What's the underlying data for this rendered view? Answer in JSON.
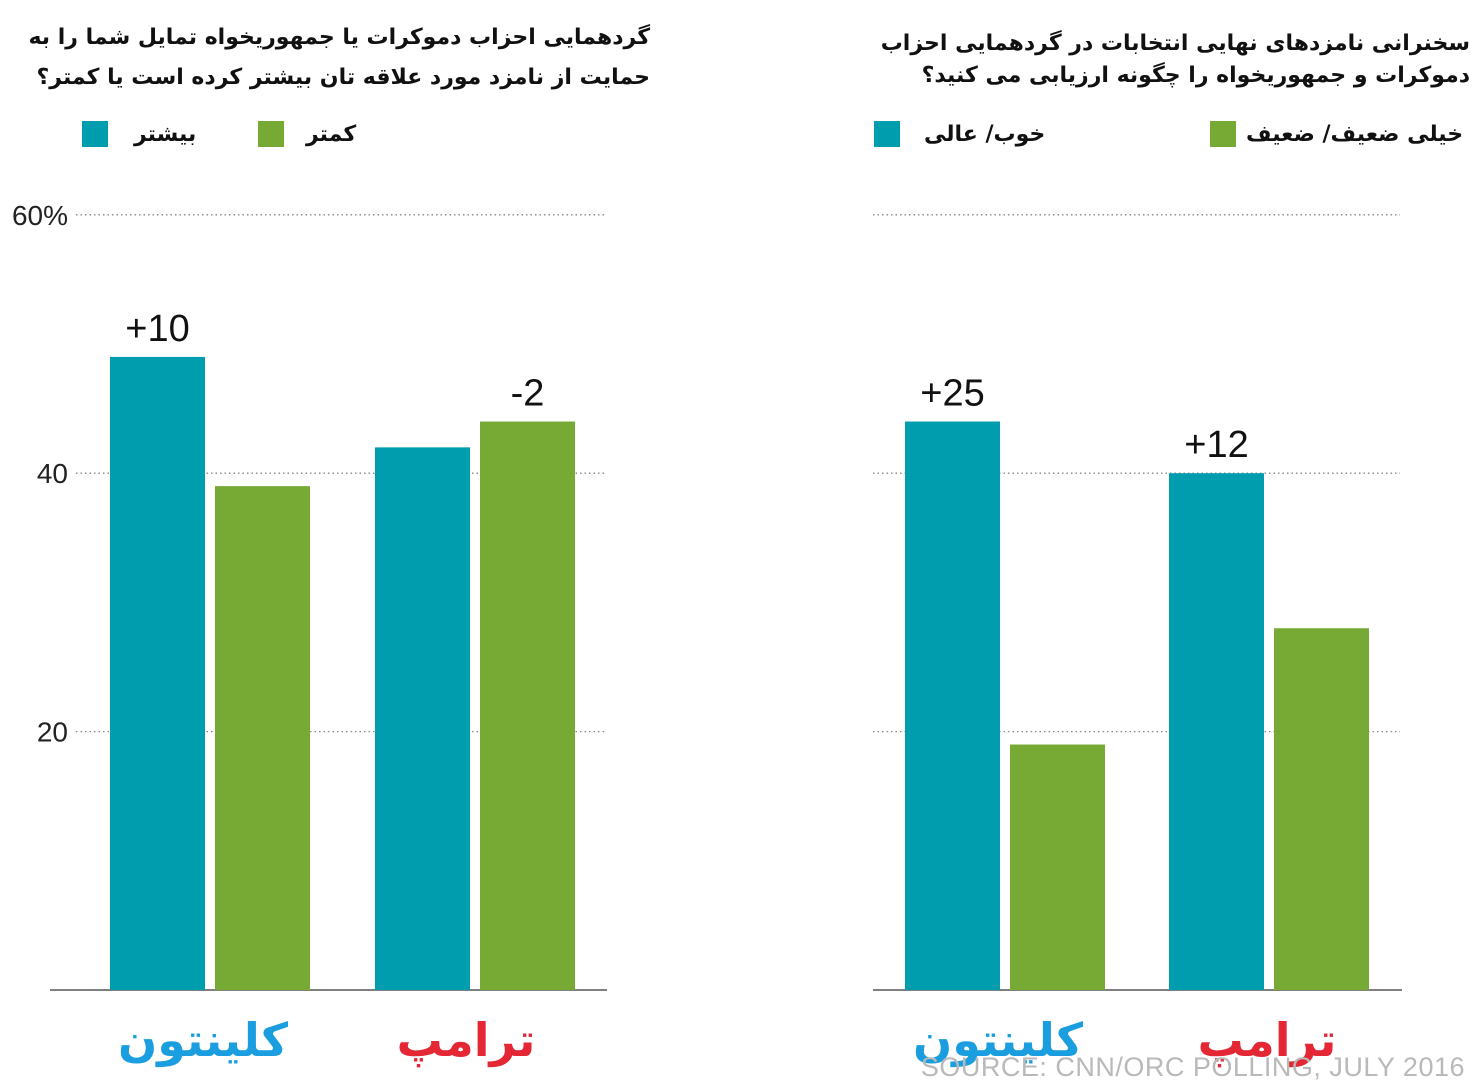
{
  "colors": {
    "more": "#009daf",
    "less": "#77aa35",
    "clinton": "#1a9ee0",
    "trump": "#e32734",
    "grid": "#888888",
    "axis": "#555555"
  },
  "source": "SOURCE: CNN/ORC POLLING, JULY 2016",
  "chart_data": [
    {
      "type": "bar",
      "title": "گردهمایی احزاب دموکرات یا جمهوریخواه تمایل شما را به حمایت از نامزد مورد علاقه تان بیشتر کرده است یا کمتر؟",
      "categories": [
        "کلینتون",
        "ترامپ"
      ],
      "series": [
        {
          "name": "بیشتر",
          "values": [
            49,
            42
          ]
        },
        {
          "name": "کمتر",
          "values": [
            39,
            44
          ]
        }
      ],
      "differences": [
        "+10",
        "-2"
      ],
      "ylim": [
        0,
        60
      ],
      "yticks": [
        "60%",
        "40",
        "20"
      ],
      "ytick_values": [
        60,
        40,
        20
      ],
      "grid": true,
      "legend": "top"
    },
    {
      "type": "bar",
      "title": "سخنرانی نامزدهای نهایی انتخابات در گردهمایی احزاب دموکرات و جمهوریخواه را چگونه ارزیابی می کنید؟",
      "categories": [
        "کلینتون",
        "ترامپ"
      ],
      "series": [
        {
          "name": "خوب/ عالی",
          "values": [
            44,
            40
          ]
        },
        {
          "name": "خیلی ضعیف/ ضعیف",
          "values": [
            19,
            28
          ]
        }
      ],
      "differences": [
        "+25",
        "+12"
      ],
      "ylim": [
        0,
        60
      ],
      "ytick_values": [
        60,
        40,
        20
      ],
      "grid": true,
      "legend": "top"
    }
  ]
}
